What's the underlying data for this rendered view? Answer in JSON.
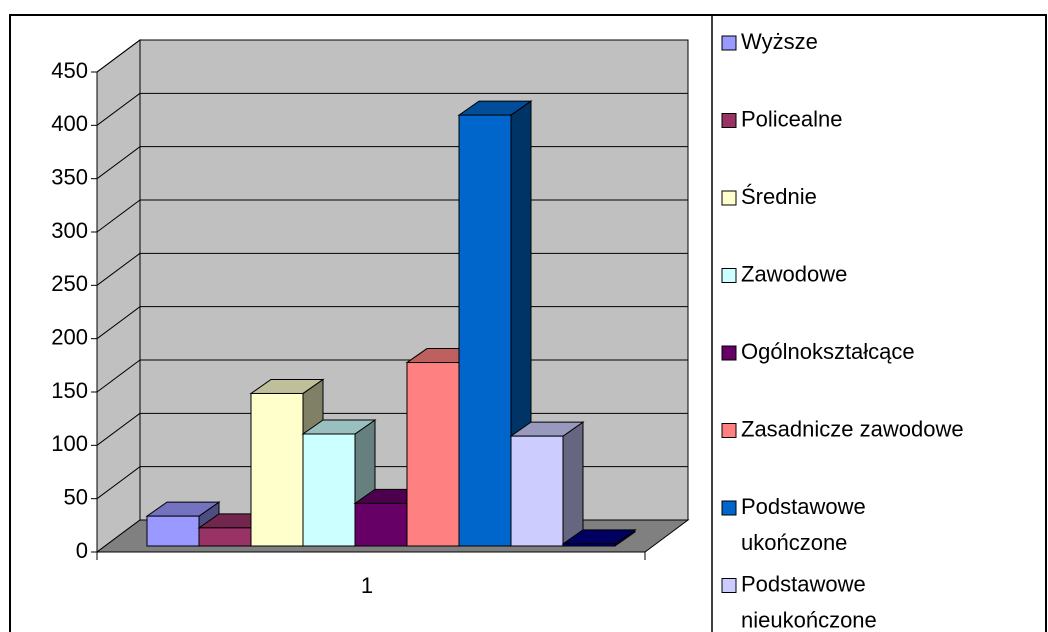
{
  "chart_data": {
    "type": "bar3d",
    "categories": [
      "1"
    ],
    "series": [
      {
        "name": "Wyższe",
        "color": "#9999ff",
        "values": [
          28
        ]
      },
      {
        "name": "Policealne",
        "color": "#993366",
        "values": [
          17
        ]
      },
      {
        "name": "Średnie",
        "color": "#ffffcc",
        "values": [
          143
        ]
      },
      {
        "name": "Zawodowe",
        "color": "#ccffff",
        "values": [
          105
        ]
      },
      {
        "name": "Ogólnokształcące",
        "color": "#660066",
        "values": [
          40
        ]
      },
      {
        "name": "Zasadnicze zawodowe",
        "color": "#ff8080",
        "values": [
          172
        ]
      },
      {
        "name": "Podstawowe ukończone",
        "color": "#0066cc",
        "values": [
          404
        ]
      },
      {
        "name": "Podstawowe nieukończone",
        "color": "#ccccff",
        "values": [
          103
        ]
      },
      {
        "name": null,
        "color": "#000080",
        "values": [
          2
        ]
      }
    ],
    "ylim": [
      0,
      450
    ],
    "yticks": [
      0,
      50,
      100,
      150,
      200,
      250,
      300,
      350,
      400,
      450
    ],
    "grid": true
  }
}
